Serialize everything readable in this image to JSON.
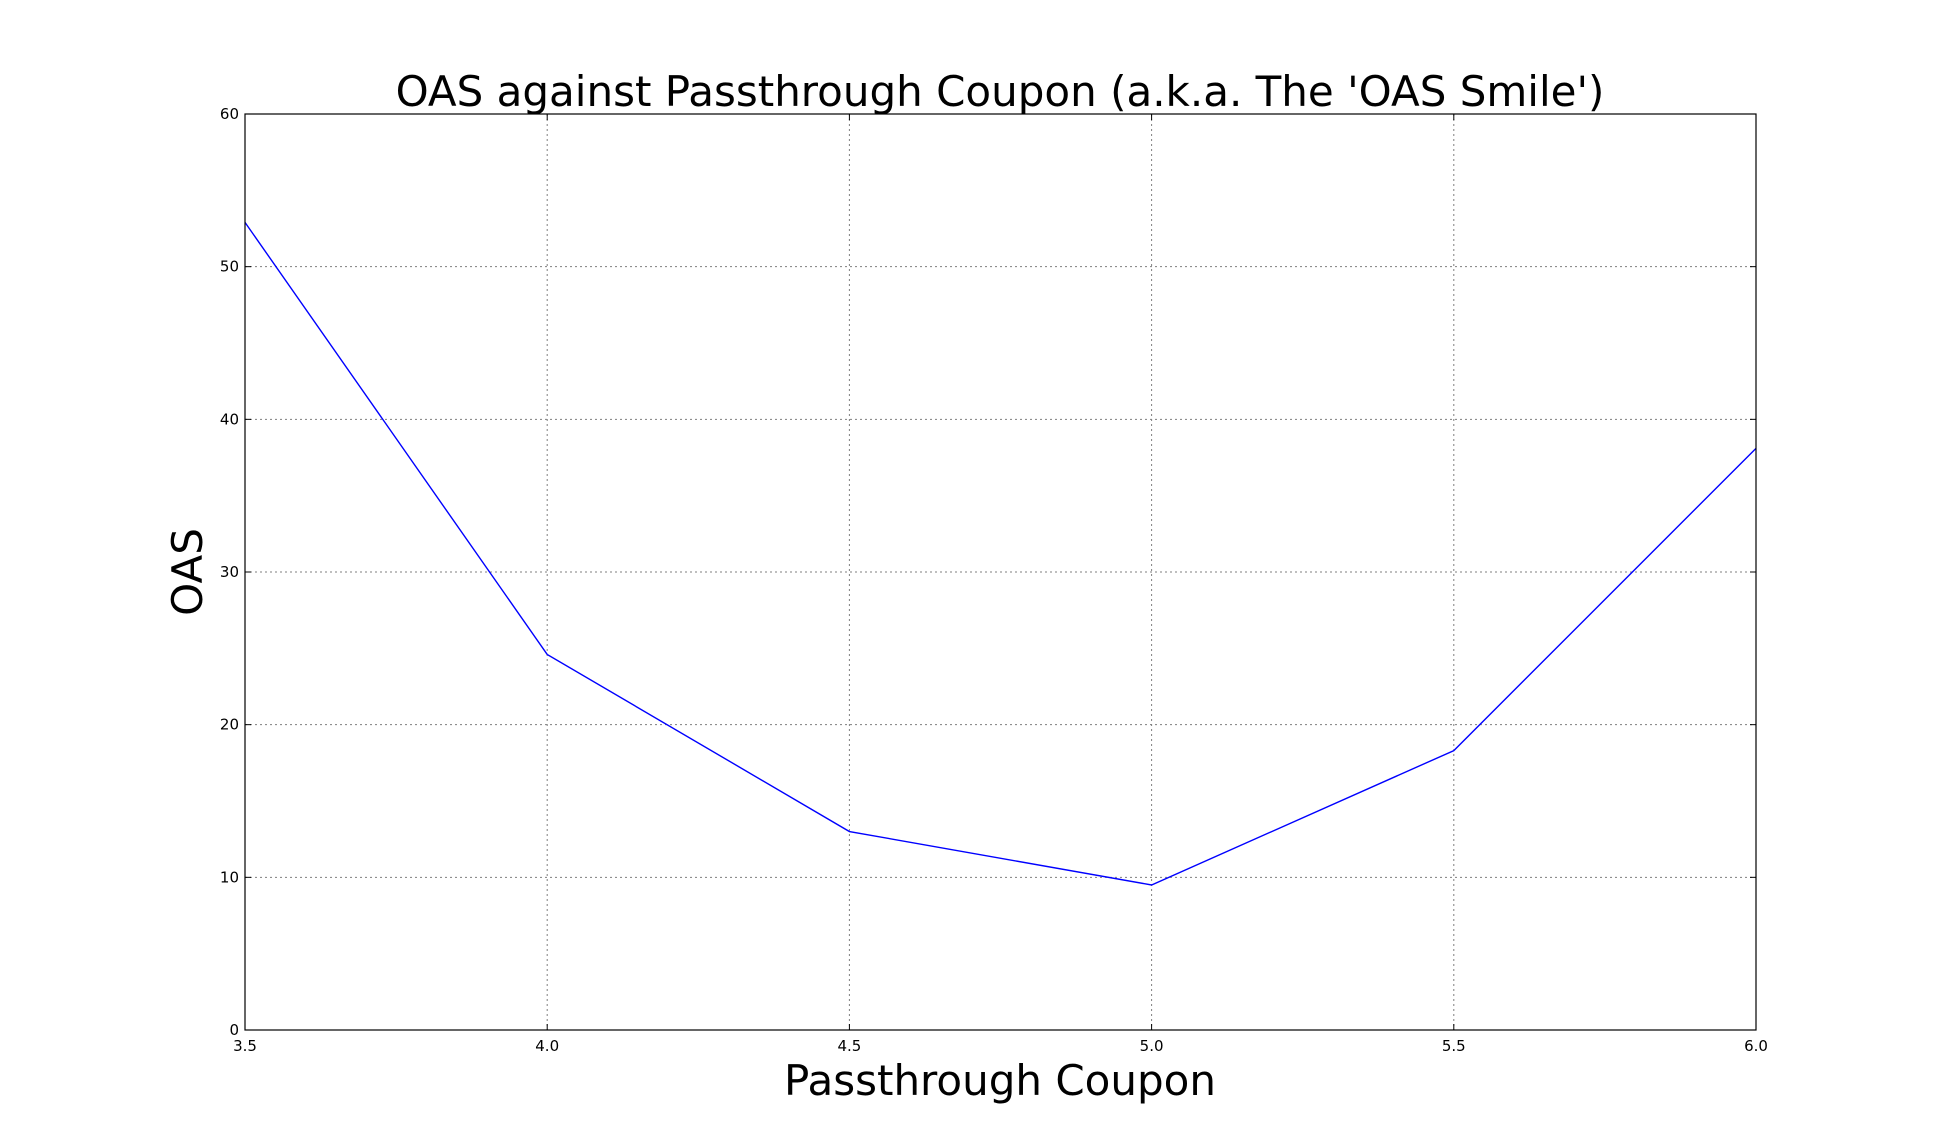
{
  "chart_data": {
    "type": "line",
    "title": "OAS against Passthrough Coupon (a.k.a. The 'OAS Smile')",
    "xlabel": "Passthrough Coupon",
    "ylabel": "OAS",
    "xlim": [
      3.5,
      6.0
    ],
    "ylim": [
      0,
      60
    ],
    "x_ticks": [
      "3.5",
      "4.0",
      "4.5",
      "5.0",
      "5.5",
      "6.0"
    ],
    "y_ticks": [
      "0",
      "10",
      "20",
      "30",
      "40",
      "50",
      "60"
    ],
    "grid": true,
    "x": [
      3.5,
      4.0,
      4.5,
      5.0,
      5.5,
      6.0
    ],
    "series": [
      {
        "values": [
          52.9,
          24.6,
          13.0,
          9.5,
          18.3,
          38.1
        ],
        "color": "#0000ff"
      }
    ]
  }
}
